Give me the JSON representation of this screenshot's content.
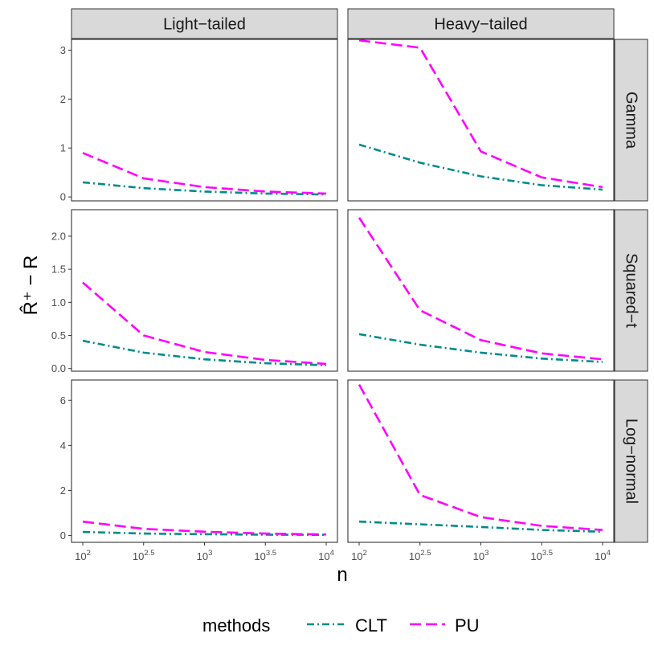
{
  "chart_data": {
    "type": "line",
    "xlabel": "n",
    "ylabel": "R̂⁺ − R",
    "x": [
      2,
      2.5,
      3,
      3.5,
      4
    ],
    "x_tick_labels": [
      {
        "base": "10",
        "exp": "2"
      },
      {
        "base": "10",
        "exp": "2.5"
      },
      {
        "base": "10",
        "exp": "3"
      },
      {
        "base": "10",
        "exp": "3.5"
      },
      {
        "base": "10",
        "exp": "4"
      }
    ],
    "columns": [
      "Light−tailed",
      "Heavy−tailed"
    ],
    "rows": [
      {
        "label": "Gamma",
        "ylim": [
          -0.08,
          3.22
        ],
        "yticks": [
          0,
          1,
          2,
          3
        ],
        "ytick_labels": [
          "0",
          "1",
          "2",
          "3"
        ]
      },
      {
        "label": "Squared−t",
        "ylim": [
          -0.04,
          2.4
        ],
        "yticks": [
          0,
          0.5,
          1.0,
          1.5,
          2.0
        ],
        "ytick_labels": [
          "0.0",
          "0.5",
          "1.0",
          "1.5",
          "2.0"
        ]
      },
      {
        "label": "Log−normal",
        "ylim": [
          -0.3,
          6.9
        ],
        "yticks": [
          0,
          2,
          4,
          6
        ],
        "ytick_labels": [
          "0",
          "2",
          "4",
          "6"
        ]
      }
    ],
    "legend": {
      "title": "methods",
      "position": "bottom",
      "entries": [
        {
          "name": "CLT",
          "color": "#008B8B",
          "dash": "dotdash"
        },
        {
          "name": "PU",
          "color": "#FF00FF",
          "dash": "longdash"
        }
      ]
    },
    "panels": [
      {
        "row": 0,
        "col": 0,
        "series": [
          {
            "name": "CLT",
            "values": [
              0.3,
              0.18,
              0.11,
              0.07,
              0.05
            ]
          },
          {
            "name": "PU",
            "values": [
              0.9,
              0.38,
              0.2,
              0.11,
              0.07
            ]
          }
        ]
      },
      {
        "row": 0,
        "col": 1,
        "series": [
          {
            "name": "CLT",
            "values": [
              1.07,
              0.7,
              0.42,
              0.24,
              0.15
            ]
          },
          {
            "name": "PU",
            "values": [
              3.2,
              3.05,
              0.93,
              0.4,
              0.2
            ]
          }
        ]
      },
      {
        "row": 1,
        "col": 0,
        "series": [
          {
            "name": "CLT",
            "values": [
              0.42,
              0.24,
              0.14,
              0.08,
              0.05
            ]
          },
          {
            "name": "PU",
            "values": [
              1.3,
              0.5,
              0.25,
              0.13,
              0.07
            ]
          }
        ]
      },
      {
        "row": 1,
        "col": 1,
        "series": [
          {
            "name": "CLT",
            "values": [
              0.52,
              0.36,
              0.24,
              0.15,
              0.1
            ]
          },
          {
            "name": "PU",
            "values": [
              2.28,
              0.88,
              0.43,
              0.23,
              0.14
            ]
          }
        ]
      },
      {
        "row": 2,
        "col": 0,
        "series": [
          {
            "name": "CLT",
            "values": [
              0.16,
              0.09,
              0.06,
              0.04,
              0.03
            ]
          },
          {
            "name": "PU",
            "values": [
              0.62,
              0.3,
              0.17,
              0.09,
              0.05
            ]
          }
        ]
      },
      {
        "row": 2,
        "col": 1,
        "series": [
          {
            "name": "CLT",
            "values": [
              0.62,
              0.5,
              0.38,
              0.25,
              0.17
            ]
          },
          {
            "name": "PU",
            "values": [
              6.7,
              1.8,
              0.82,
              0.43,
              0.25
            ]
          }
        ]
      }
    ]
  }
}
